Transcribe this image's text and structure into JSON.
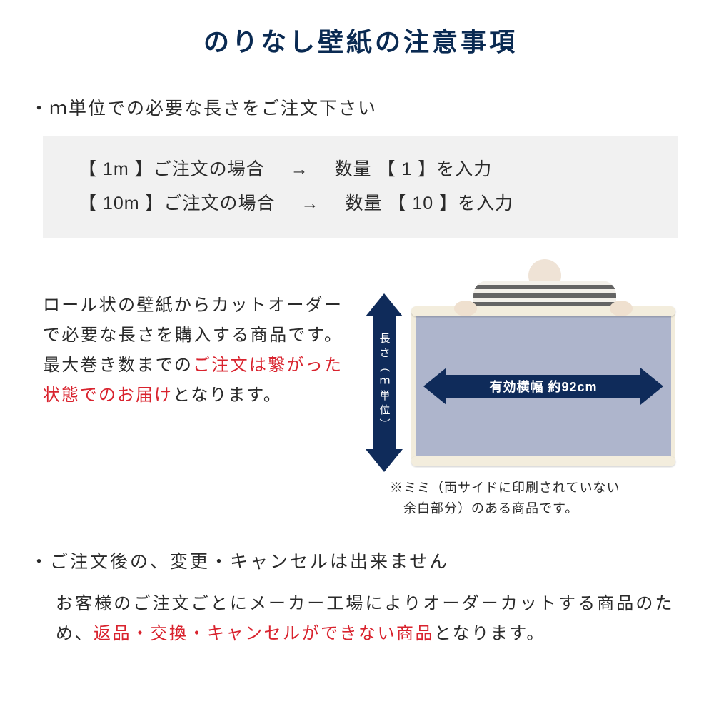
{
  "title": "のりなし壁紙の注意事項",
  "bullet1": "・ｍ単位での必要な長さをご注文下さい",
  "examples": [
    {
      "left": "【 1m 】ご注文の場合",
      "arrow": "→",
      "right": "数量 【 1 】を入力"
    },
    {
      "left": "【 10m 】ご注文の場合",
      "arrow": "→",
      "right": "数量 【 10 】を入力"
    }
  ],
  "desc_pre": "ロール状の壁紙からカットオーダーで必要な長さを購入する商品です。最大巻き数までの",
  "desc_red": "ご注文は繋がった状態でのお届け",
  "desc_post": "となります。",
  "v_arrow_label": "長さ︵ｍ単位︶",
  "h_arrow_label": "有効横幅 約92cm",
  "mimi_note1": "※ミミ（両サイドに印刷されていない",
  "mimi_note2": "　余白部分）のある商品です。",
  "bullet2": "・ご注文後の、変更・キャンセルは出来ません",
  "desc2_pre": "お客様のご注文ごとにメーカー工場によりオーダーカットする商品のため、",
  "desc2_red": "返品・交換・キャンセルができない商品",
  "desc2_post": "となります。",
  "colors": {
    "title": "#0a2a52",
    "arrow_bg": "#0f2b5a",
    "red": "#d9232e",
    "example_bg": "#f1f1f1",
    "roll_fill": "#aeb5cc",
    "roll_border": "#f2ecdc"
  }
}
